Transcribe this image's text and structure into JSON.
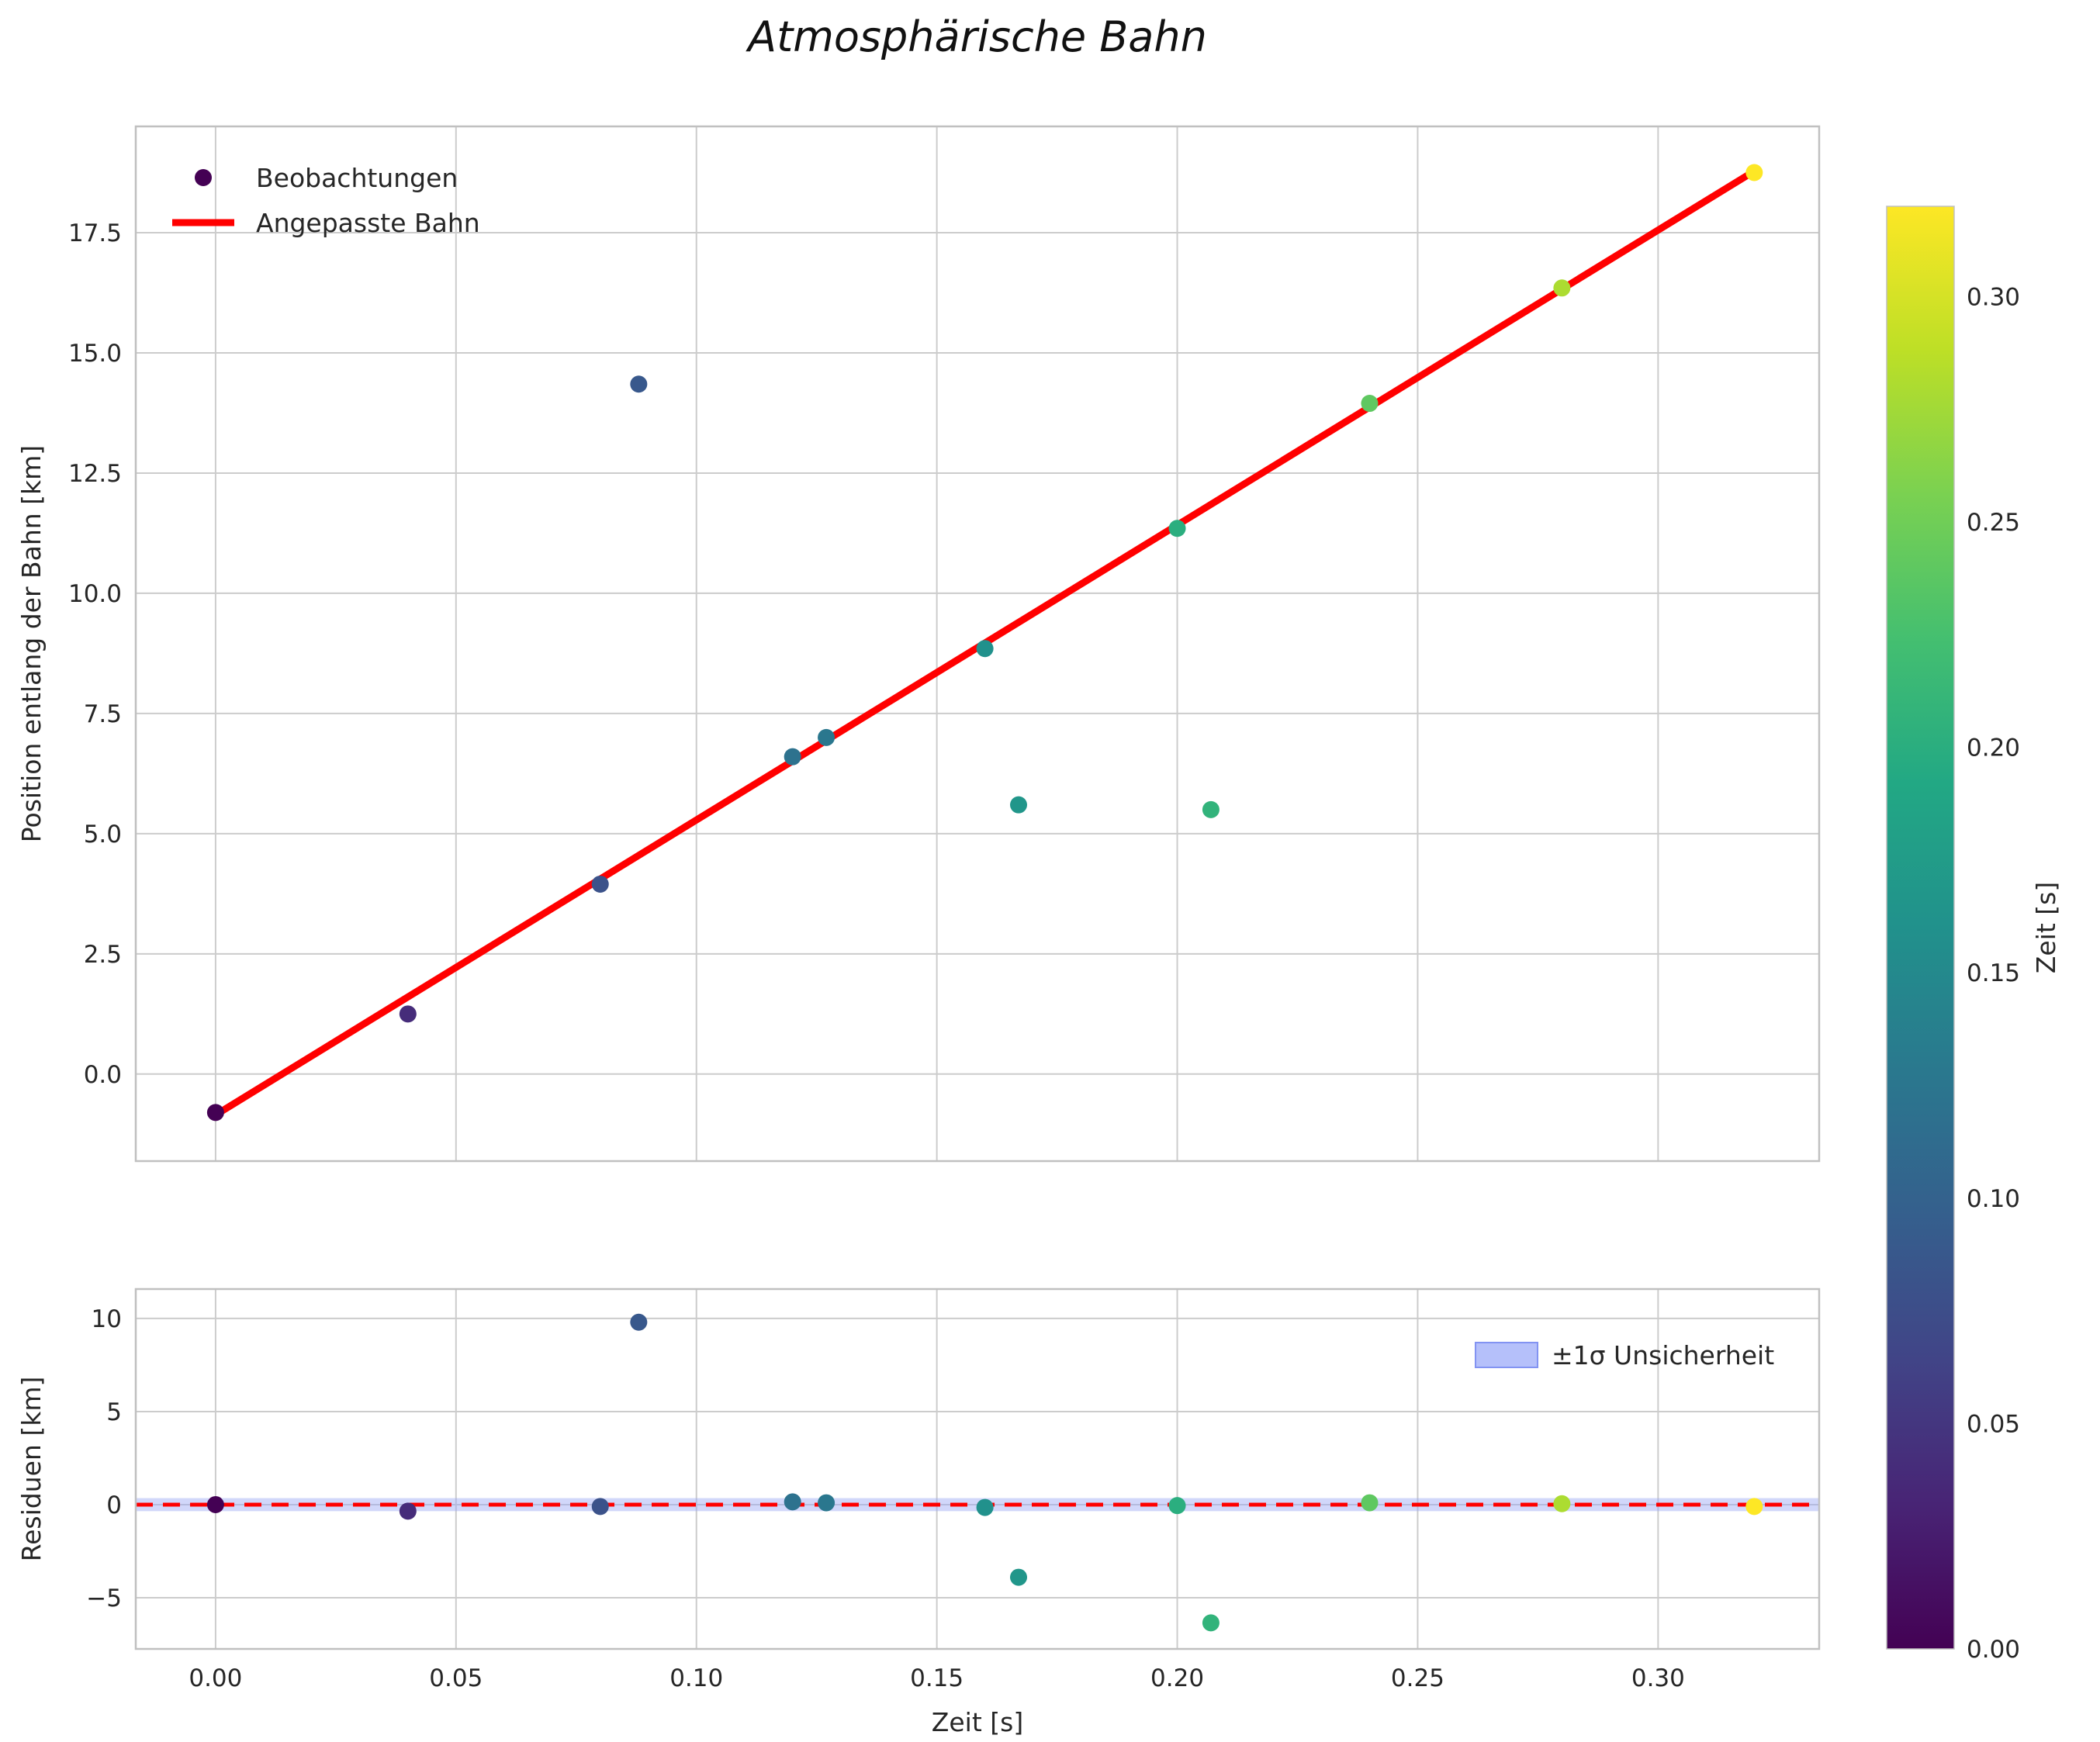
{
  "figure": {
    "title": "Atmosphärische Bahn",
    "background": "#ffffff"
  },
  "style": {
    "grid_color": "#cccccc",
    "spine_color": "#c0c0c0",
    "text_color": "#262626",
    "fit_line_color": "#ff0000",
    "zero_line_color": "#ff0000",
    "band_fill_color": "#98a6f5",
    "band_opacity": 0.45,
    "legend_patch_fill": "#b5c0fa",
    "legend_patch_stroke": "#8293f2",
    "viridis_stops": [
      "#440154",
      "#482475",
      "#414487",
      "#355f8d",
      "#2a788e",
      "#21918c",
      "#22a884",
      "#44bf70",
      "#7ad151",
      "#bddf26",
      "#fde725"
    ]
  },
  "chart_data": [
    {
      "type": "scatter",
      "name": "trajectory-plot",
      "title": "",
      "xlabel": "",
      "ylabel": "Position entlang der Bahn [km]",
      "xlim": [
        -0.0166,
        0.3335
      ],
      "ylim": [
        -1.81,
        19.71
      ],
      "xticks": [
        0.0,
        0.05,
        0.1,
        0.15,
        0.2,
        0.25,
        0.3
      ],
      "xtick_labels": [],
      "yticks": [
        0.0,
        2.5,
        5.0,
        7.5,
        10.0,
        12.5,
        15.0,
        17.5
      ],
      "ytick_labels": [
        "0.0",
        "2.5",
        "5.0",
        "7.5",
        "10.0",
        "12.5",
        "15.0",
        "17.5"
      ],
      "grid": true,
      "legend_position": "upper left",
      "series": [
        {
          "name": "Beobachtungen",
          "type": "scatter",
          "colormap": "viridis",
          "color_by": "x",
          "x": [
            0.0,
            0.04,
            0.08,
            0.088,
            0.12,
            0.127,
            0.16,
            0.167,
            0.2,
            0.207,
            0.24,
            0.28,
            0.32
          ],
          "y": [
            -0.8,
            1.25,
            3.95,
            14.35,
            6.6,
            7.0,
            8.85,
            5.6,
            11.35,
            5.5,
            13.95,
            16.35,
            18.75
          ]
        },
        {
          "name": "Angepasste Bahn",
          "type": "line",
          "x": [
            0.0,
            0.32
          ],
          "y": [
            -0.85,
            18.78
          ]
        }
      ],
      "legend": [
        {
          "label": "Beobachtungen",
          "handle": "marker"
        },
        {
          "label": "Angepasste Bahn",
          "handle": "line"
        }
      ]
    },
    {
      "type": "scatter",
      "name": "residual-plot",
      "title": "",
      "xlabel": "Zeit [s]",
      "ylabel": "Residuen [km]",
      "xlim": [
        -0.0166,
        0.3335
      ],
      "ylim": [
        -7.75,
        11.58
      ],
      "xticks": [
        0.0,
        0.05,
        0.1,
        0.15,
        0.2,
        0.25,
        0.3
      ],
      "xtick_labels": [
        "0.00",
        "0.05",
        "0.10",
        "0.15",
        "0.20",
        "0.25",
        "0.30"
      ],
      "yticks": [
        -5,
        0,
        5,
        10
      ],
      "ytick_labels": [
        "−5",
        "0",
        "5",
        "10"
      ],
      "grid": true,
      "legend_position": "upper right",
      "series": [
        {
          "name": "Residuen",
          "type": "scatter",
          "colormap": "viridis",
          "color_by": "x",
          "x": [
            0.0,
            0.04,
            0.08,
            0.088,
            0.12,
            0.127,
            0.16,
            0.167,
            0.2,
            0.207,
            0.24,
            0.28,
            0.32
          ],
          "y": [
            0.0,
            -0.35,
            -0.1,
            9.8,
            0.15,
            0.1,
            -0.15,
            -3.9,
            -0.05,
            -6.35,
            0.1,
            0.05,
            -0.1
          ]
        }
      ],
      "band": {
        "label": "±1σ Unsicherheit",
        "y_low": -0.35,
        "y_high": 0.35
      },
      "zero_line": {
        "y": 0,
        "style": "dashed"
      },
      "legend": [
        {
          "label": "±1σ Unsicherheit",
          "handle": "patch"
        }
      ]
    }
  ],
  "colorbar": {
    "label": "Zeit [s]",
    "colormap": "viridis",
    "vmin": 0.0,
    "vmax": 0.32,
    "ticks": [
      0.0,
      0.05,
      0.1,
      0.15,
      0.2,
      0.25,
      0.3
    ],
    "tick_labels": [
      "0.00",
      "0.05",
      "0.10",
      "0.15",
      "0.20",
      "0.25",
      "0.30"
    ]
  }
}
